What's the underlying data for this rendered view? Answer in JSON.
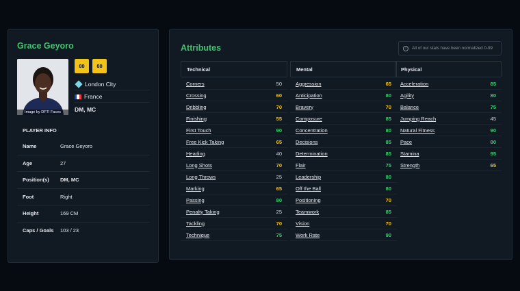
{
  "player": {
    "name": "Grace Geyoro",
    "ratings": [
      "88",
      "88"
    ],
    "photo_credit": "Image by DFTI Faces",
    "club": "London City",
    "nation": "France",
    "positions": "DM, MC",
    "info_title": "PLAYER INFO",
    "info": [
      {
        "label": "Name",
        "value": "Grace Geyoro"
      },
      {
        "label": "Age",
        "value": "27"
      },
      {
        "label": "Position(s)",
        "value": "DM, MC"
      },
      {
        "label": "Foot",
        "value": "Right"
      },
      {
        "label": "Height",
        "value": "169 CM"
      },
      {
        "label": "Caps / Goals",
        "value": "103 / 23"
      }
    ]
  },
  "attributes": {
    "title": "Attributes",
    "notice": "All of our stats have been normalized 0-99",
    "columns": [
      {
        "title": "Technical",
        "items": [
          {
            "name": "Corners",
            "value": "50"
          },
          {
            "name": "Crossing",
            "value": "60"
          },
          {
            "name": "Dribbling",
            "value": "70"
          },
          {
            "name": "Finishing",
            "value": "55"
          },
          {
            "name": "First Touch",
            "value": "90"
          },
          {
            "name": "Free Kick Taking",
            "value": "65"
          },
          {
            "name": "Heading",
            "value": "40"
          },
          {
            "name": "Long Shots",
            "value": "70"
          },
          {
            "name": "Long Throws",
            "value": "25"
          },
          {
            "name": "Marking",
            "value": "65"
          },
          {
            "name": "Passing",
            "value": "80"
          },
          {
            "name": "Penalty Taking",
            "value": "25"
          },
          {
            "name": "Tackling",
            "value": "70"
          },
          {
            "name": "Technique",
            "value": "75"
          }
        ]
      },
      {
        "title": "Mental",
        "items": [
          {
            "name": "Aggression",
            "value": "65"
          },
          {
            "name": "Anticipation",
            "value": "80"
          },
          {
            "name": "Bravery",
            "value": "70"
          },
          {
            "name": "Composure",
            "value": "85"
          },
          {
            "name": "Concentration",
            "value": "80"
          },
          {
            "name": "Decisions",
            "value": "85"
          },
          {
            "name": "Determination",
            "value": "85"
          },
          {
            "name": "Flair",
            "value": "75"
          },
          {
            "name": "Leadership",
            "value": "80"
          },
          {
            "name": "Off the Ball",
            "value": "80"
          },
          {
            "name": "Positioning",
            "value": "70"
          },
          {
            "name": "Teamwork",
            "value": "85"
          },
          {
            "name": "Vision",
            "value": "70"
          },
          {
            "name": "Work Rate",
            "value": "90"
          }
        ]
      },
      {
        "title": "Physical",
        "items": [
          {
            "name": "Acceleration",
            "value": "85"
          },
          {
            "name": "Agility",
            "value": "80"
          },
          {
            "name": "Balance",
            "value": "75"
          },
          {
            "name": "Jumping Reach",
            "value": "45"
          },
          {
            "name": "Natural Fitness",
            "value": "90"
          },
          {
            "name": "Pace",
            "value": "80"
          },
          {
            "name": "Stamina",
            "value": "95"
          },
          {
            "name": "Strength",
            "value": "65"
          }
        ]
      }
    ]
  },
  "colors": {
    "accent": "#3ec46d",
    "high": "#35d46a",
    "mid": "#f2c318",
    "low": "#cfd4da",
    "rating_bg": "#f2c318"
  }
}
